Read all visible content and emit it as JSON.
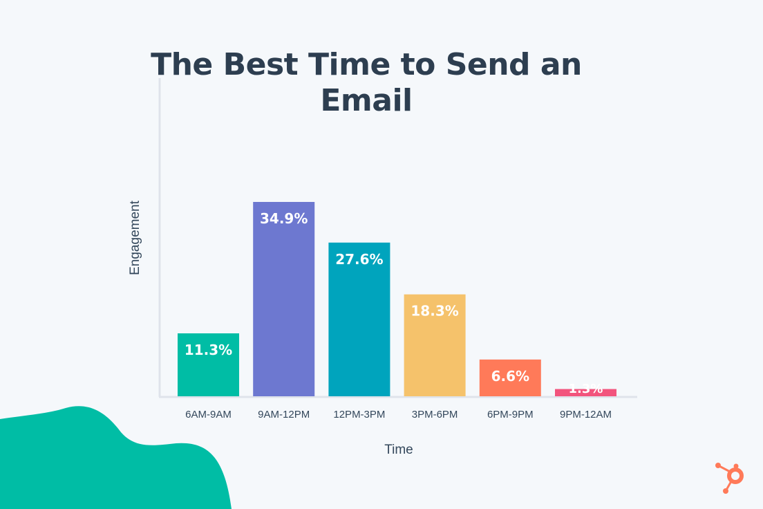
{
  "chart_data": {
    "type": "bar",
    "title": "The Best Time to Send an Email",
    "xlabel": "Time",
    "ylabel": "Engagement",
    "categories": [
      "6AM-9AM",
      "9AM-12PM",
      "12PM-3PM",
      "3PM-6PM",
      "6PM-9PM",
      "9PM-12AM"
    ],
    "values": [
      11.3,
      34.9,
      27.6,
      18.3,
      6.6,
      1.3
    ],
    "data_labels": [
      "11.3%",
      "34.9%",
      "27.6%",
      "18.3%",
      "6.6%",
      "1.3%"
    ],
    "colors": [
      "#00bda5",
      "#6d78d0",
      "#00a4bd",
      "#f5c26b",
      "#ff7a59",
      "#f2547d"
    ],
    "ylim": [
      0,
      36
    ],
    "grid": false,
    "legend": "none"
  },
  "brand": {
    "logo": "hubspot-logo",
    "color": "#ff7a59"
  },
  "decoration": {
    "blob_color": "#00bda5"
  }
}
